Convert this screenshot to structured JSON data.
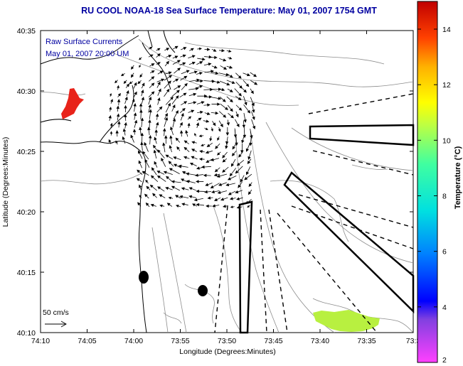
{
  "title": "RU COOL  NOAA-18  Sea Surface Temperature:  May 01, 2007 1754 GMT",
  "overlay": {
    "line1": "Raw Surface Currents",
    "line2": "May 01, 2007 20:00 UM"
  },
  "axes": {
    "xlabel": "Longitude (Degrees:Minutes)",
    "ylabel": "Latitude (Degrees:Minutes)",
    "x_ticks": [
      "74:10",
      "74:05",
      "74:00",
      "73:55",
      "73:50",
      "73:45",
      "73:40",
      "73:35",
      "73:3"
    ],
    "y_ticks": [
      "40:35",
      "40:30",
      "40:25",
      "40:20",
      "40:15",
      "40:10"
    ]
  },
  "scale": {
    "label": "50 cm/s"
  },
  "colorbar": {
    "label": "Temperature (°C)",
    "ticks": [
      "14",
      "12",
      "10",
      "8",
      "6",
      "4",
      "2"
    ]
  },
  "colors": {
    "title": "#0000a0",
    "sst_warm": "#e8231a",
    "sst_cool": "#b8f040",
    "contour": "#8c8c8c",
    "coast": "#000000"
  }
}
